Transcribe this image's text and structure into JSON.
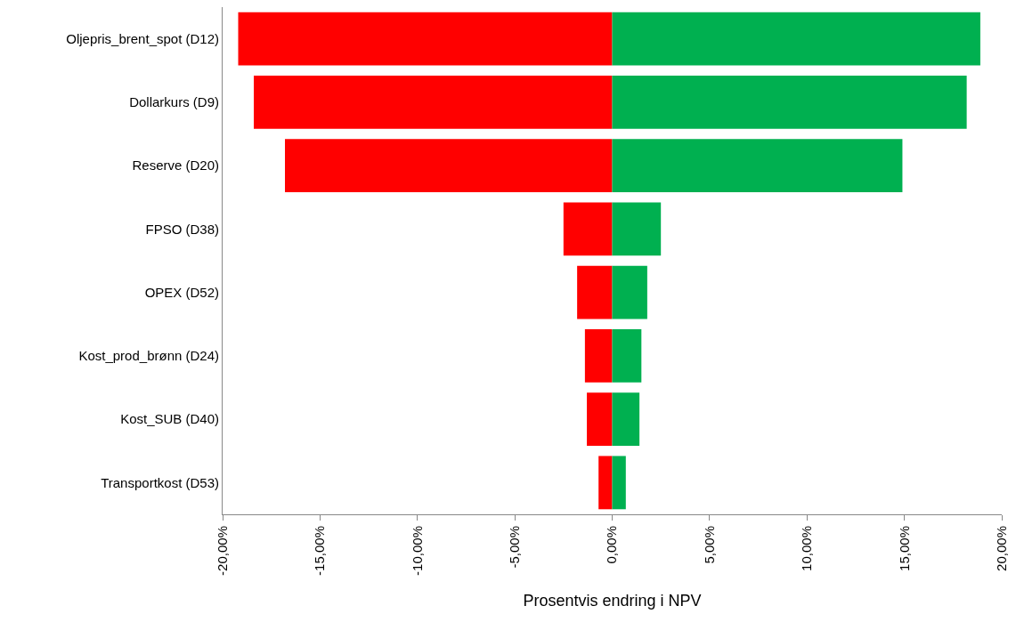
{
  "chart_data": {
    "type": "bar",
    "orientation": "horizontal",
    "stacked": true,
    "xlabel": "Prosentvis endring i NPV",
    "categories": [
      "Oljepris_brent_spot (D12)",
      "Dollarkurs (D9)",
      "Reserve (D20)",
      "FPSO (D38)",
      "OPEX (D52)",
      "Kost_prod_brønn (D24)",
      "Kost_SUB (D40)",
      "Transportkost (D53)"
    ],
    "series": [
      {
        "color": "#ff0000",
        "values": [
          -19.2,
          -18.4,
          -16.8,
          -2.5,
          -1.8,
          -1.4,
          -1.3,
          -0.7
        ]
      },
      {
        "color": "#00b050",
        "values": [
          18.9,
          18.2,
          14.9,
          2.5,
          1.8,
          1.5,
          1.4,
          0.7
        ]
      }
    ],
    "xlim": [
      -20,
      20
    ],
    "xticks": [
      {
        "value": -20,
        "label": "-20,00%"
      },
      {
        "value": -15,
        "label": "-15,00%"
      },
      {
        "value": -10,
        "label": "-10,00%"
      },
      {
        "value": -5,
        "label": "-5,00%"
      },
      {
        "value": 0,
        "label": "0,00%"
      },
      {
        "value": 5,
        "label": "5,00%"
      },
      {
        "value": 10,
        "label": "10,00%"
      },
      {
        "value": 15,
        "label": "15,00%"
      },
      {
        "value": 20,
        "label": "20,00%"
      }
    ],
    "grid": false
  }
}
